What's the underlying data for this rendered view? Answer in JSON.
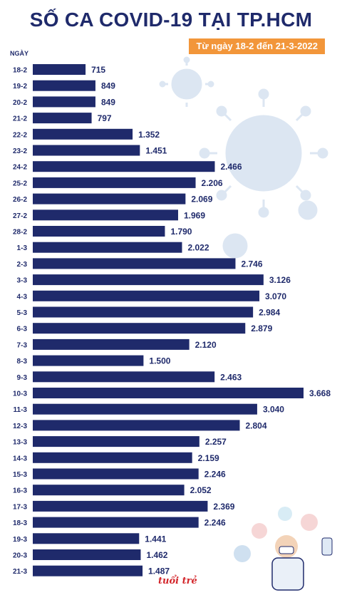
{
  "title": "SỐ CA COVID-19 TẠI TP.HCM",
  "subtitle": "Từ ngày 18-2 đến 21-3-2022",
  "logo_text": "tuổi trẻ",
  "colors": {
    "bar": "#1f2a6b",
    "title": "#1f2a6b",
    "badge": "#f2963a",
    "virus": "#dce6f2"
  },
  "chart_data": {
    "type": "bar",
    "orientation": "horizontal",
    "ylabel": "NGÀY",
    "categories": [
      "18-2",
      "19-2",
      "20-2",
      "21-2",
      "22-2",
      "23-2",
      "24-2",
      "25-2",
      "26-2",
      "27-2",
      "28-2",
      "1-3",
      "2-3",
      "3-3",
      "4-3",
      "5-3",
      "6-3",
      "7-3",
      "8-3",
      "9-3",
      "10-3",
      "11-3",
      "12-3",
      "13-3",
      "14-3",
      "15-3",
      "16-3",
      "17-3",
      "18-3",
      "19-3",
      "20-3",
      "21-3"
    ],
    "values": [
      715,
      849,
      849,
      797,
      1352,
      1451,
      2466,
      2206,
      2069,
      1969,
      1790,
      2022,
      2746,
      3126,
      3070,
      2984,
      2879,
      2120,
      1500,
      2463,
      3668,
      3040,
      2804,
      2257,
      2159,
      2246,
      2052,
      2369,
      2246,
      1441,
      1462,
      1487
    ],
    "value_labels": [
      "715",
      "849",
      "849",
      "797",
      "1.352",
      "1.451",
      "2.466",
      "2.206",
      "2.069",
      "1.969",
      "1.790",
      "2.022",
      "2.746",
      "3.126",
      "3.070",
      "2.984",
      "2.879",
      "2.120",
      "1.500",
      "2.463",
      "3.668",
      "3.040",
      "2.804",
      "2.257",
      "2.159",
      "2.246",
      "2.052",
      "2.369",
      "2.246",
      "1.441",
      "1.462",
      "1.487"
    ],
    "xlim": [
      0,
      3668
    ]
  }
}
